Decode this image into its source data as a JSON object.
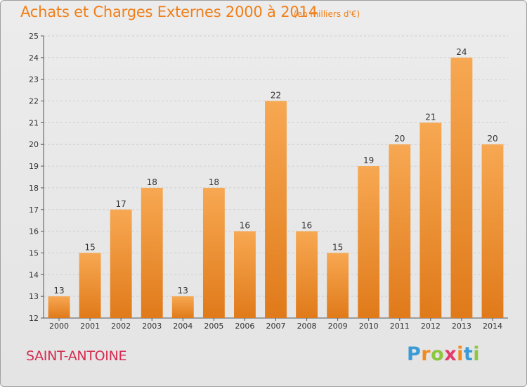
{
  "title": "Achats et Charges Externes 2000 à 2014",
  "subtitle": "(en milliers d'€)",
  "commune": "SAINT-ANTOINE",
  "logo": {
    "letters": [
      "P",
      "r",
      "o",
      "x",
      "i",
      "t",
      "i"
    ],
    "colors": [
      "#3a9bd6",
      "#f28b1c",
      "#8dc63f",
      "#e23a6b",
      "#f28b1c",
      "#3a9bd6",
      "#8dc63f"
    ]
  },
  "colors": {
    "bar_light": "#f7a852",
    "bar_dark": "#e07a1a",
    "title": "#f07f1a",
    "commune": "#d52b4f"
  },
  "chart_data": {
    "type": "bar",
    "title": "Achats et Charges Externes 2000 à 2014",
    "subtitle": "(en milliers d'€)",
    "categories": [
      "2000",
      "2001",
      "2002",
      "2003",
      "2004",
      "2005",
      "2006",
      "2007",
      "2008",
      "2009",
      "2010",
      "2011",
      "2012",
      "2013",
      "2014"
    ],
    "values": [
      13,
      15,
      17,
      18,
      13,
      18,
      16,
      22,
      16,
      15,
      19,
      20,
      21,
      24,
      20
    ],
    "ylim": [
      12,
      25
    ],
    "yticks": [
      12,
      13,
      14,
      15,
      16,
      17,
      18,
      19,
      20,
      21,
      22,
      23,
      24,
      25
    ],
    "grid": true,
    "xlabel": "",
    "ylabel": ""
  }
}
